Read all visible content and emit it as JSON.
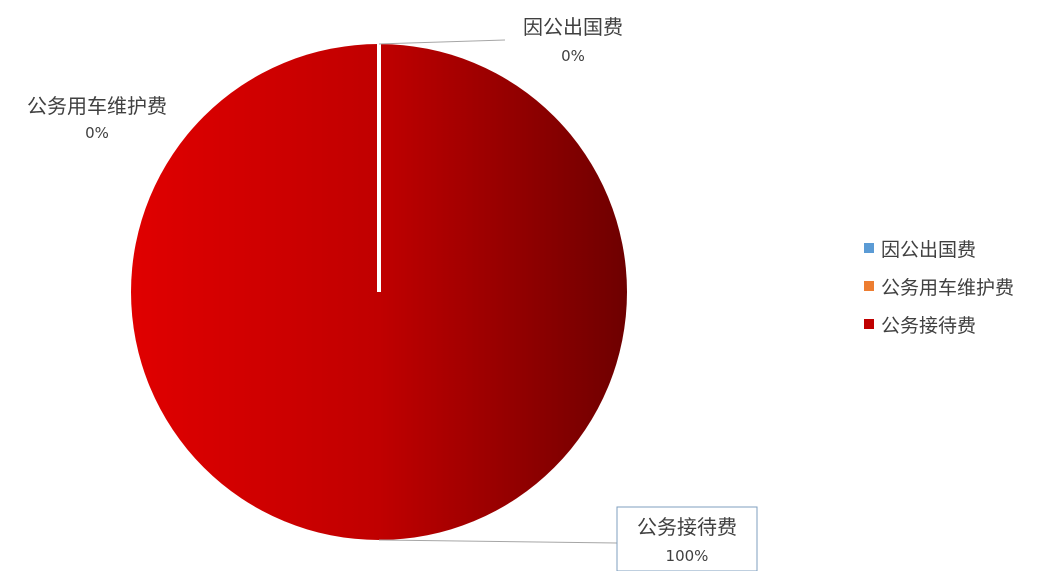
{
  "chart_data": {
    "type": "pie",
    "title": "",
    "slices": [
      {
        "label": "因公出国费",
        "value": 0,
        "percent_label": "0%",
        "color": "#5b9bd5"
      },
      {
        "label": "公务用车维护费",
        "value": 0,
        "percent_label": "0%",
        "color": "#ed7d31"
      },
      {
        "label": "公务接待费",
        "value": 100,
        "percent_label": "100%",
        "color": "#c00000"
      }
    ],
    "legend_position": "right"
  }
}
